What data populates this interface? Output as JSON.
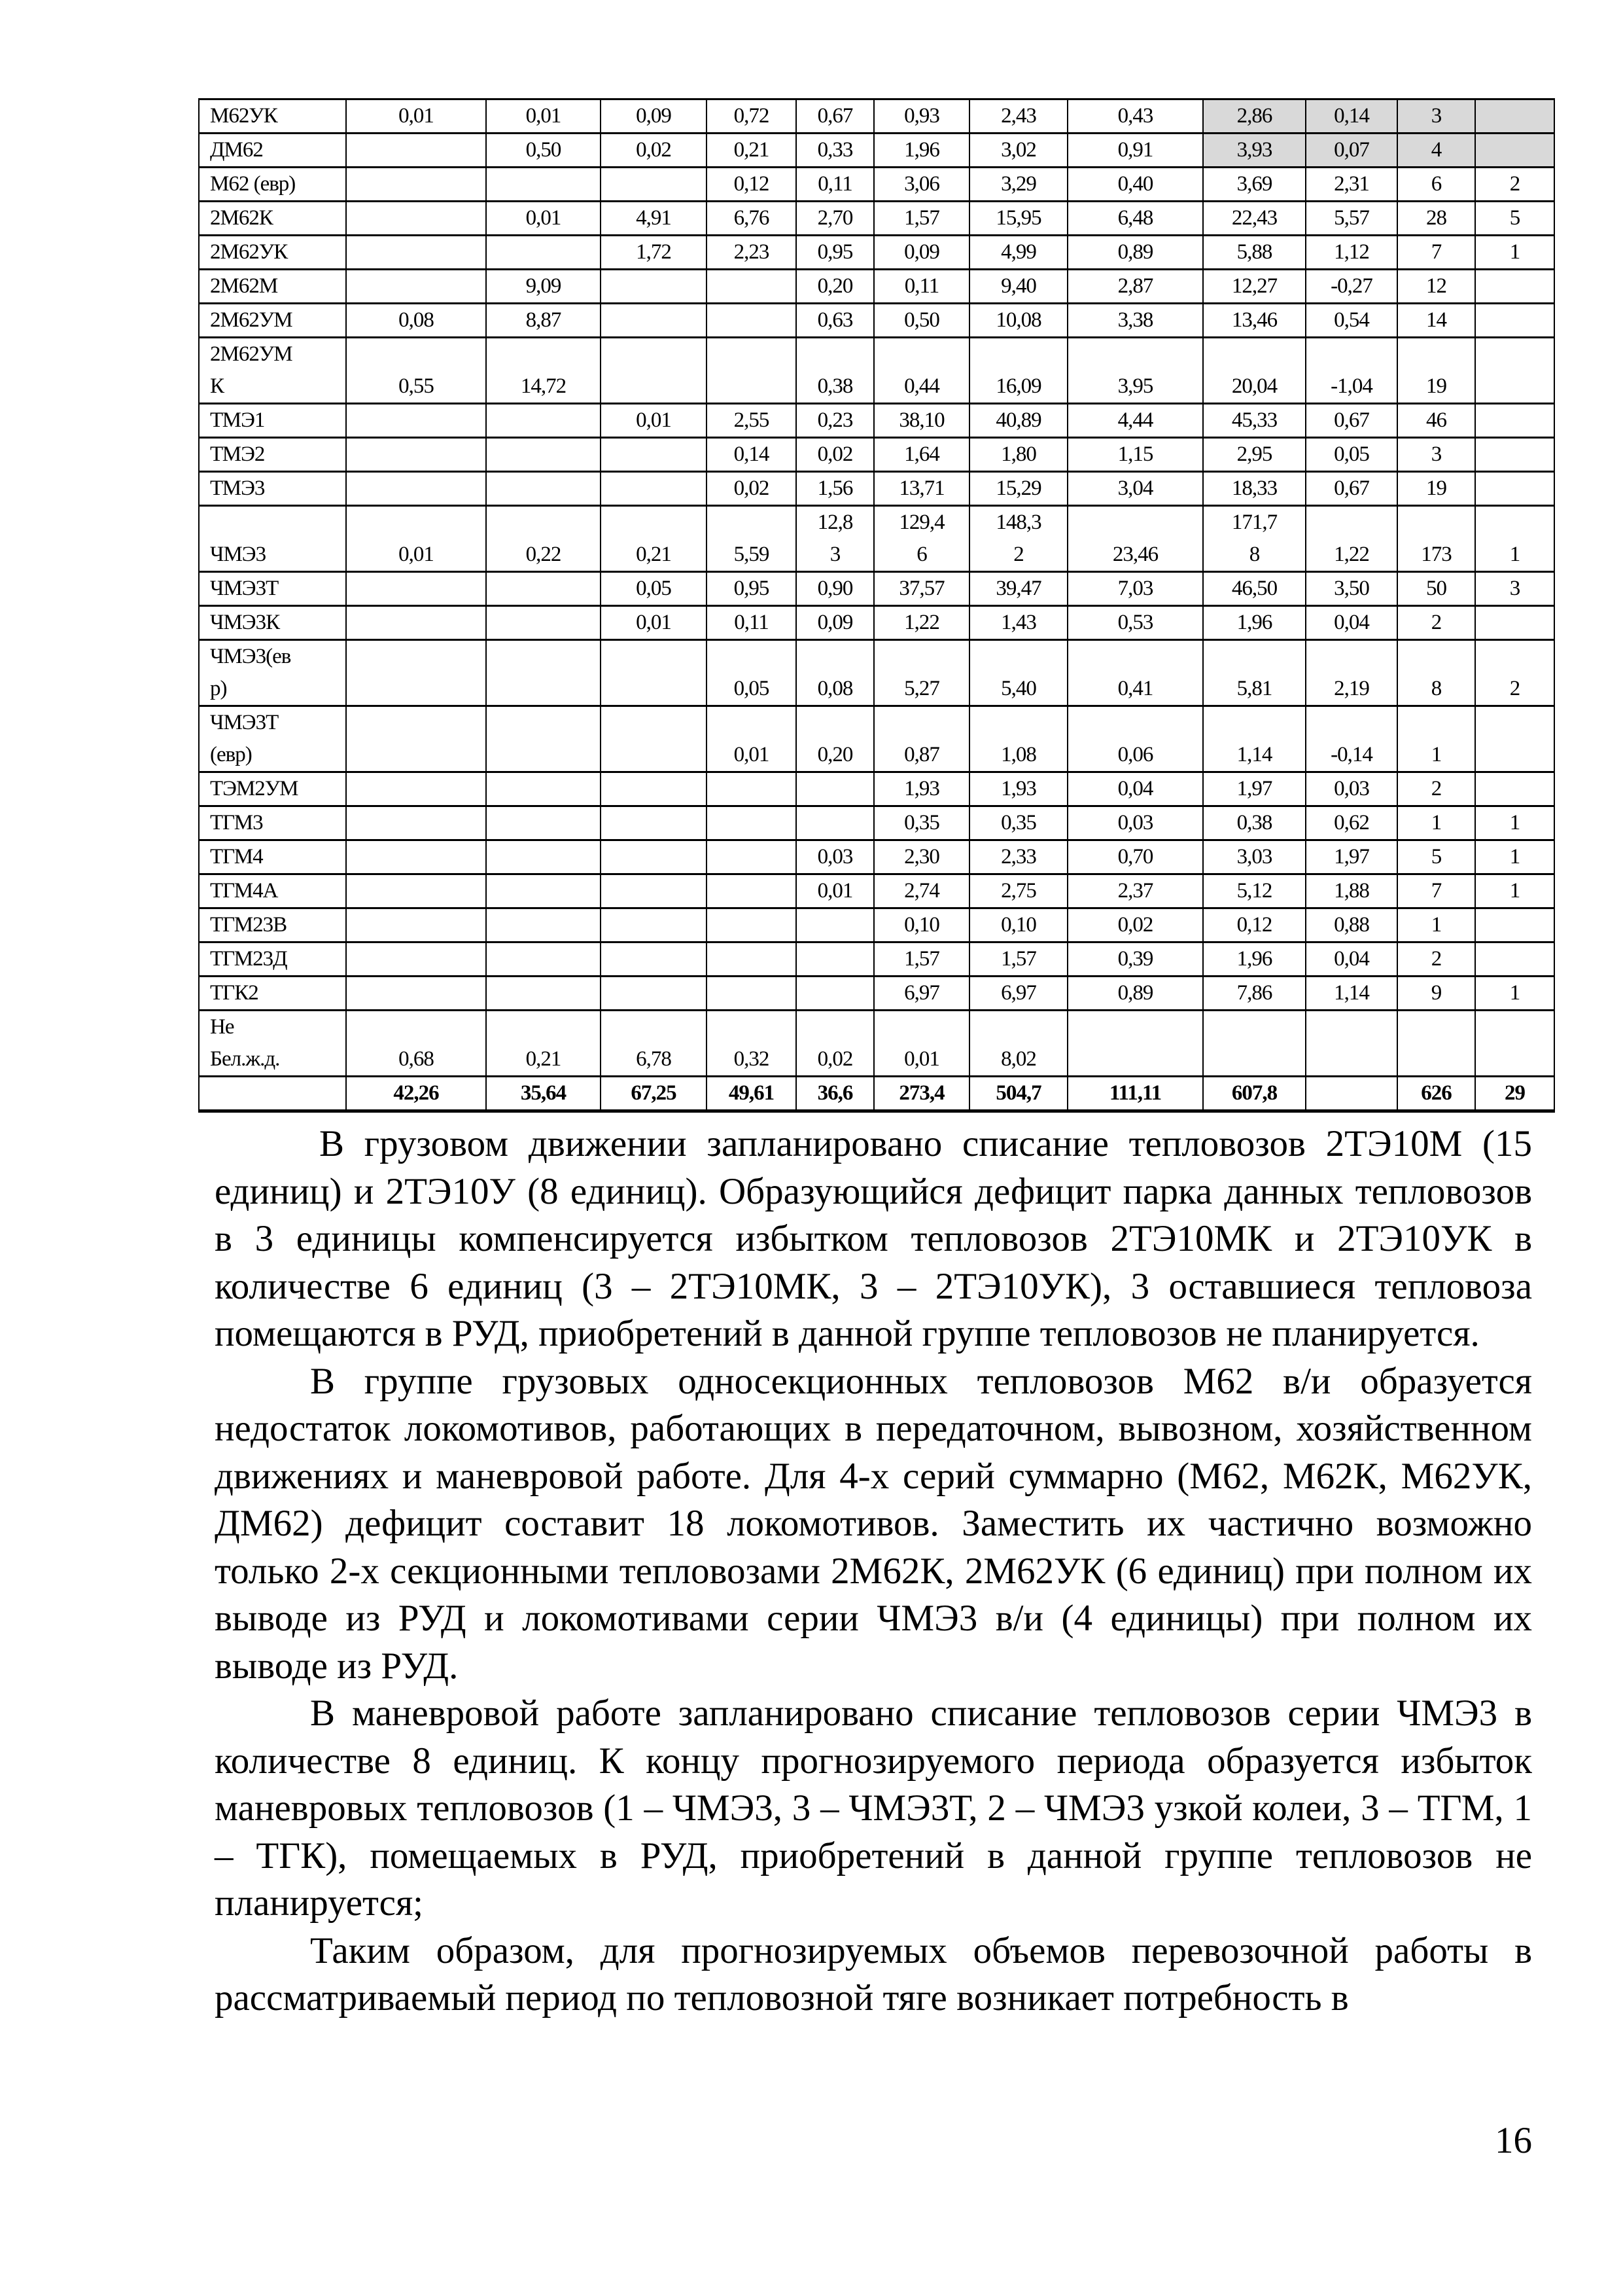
{
  "table": {
    "rows": [
      [
        "М62УК",
        "0,01",
        "0,01",
        "0,09",
        "0,72",
        "0,67",
        "0,93",
        "2,43",
        "0,43",
        "2,86",
        "0,14",
        "3",
        ""
      ],
      [
        "ДМ62",
        "",
        "0,50",
        "0,02",
        "0,21",
        "0,33",
        "1,96",
        "3,02",
        "0,91",
        "3,93",
        "0,07",
        "4",
        ""
      ],
      [
        "М62 (евр)",
        "",
        "",
        "",
        "0,12",
        "0,11",
        "3,06",
        "3,29",
        "0,40",
        "3,69",
        "2,31",
        "6",
        "2"
      ],
      [
        "2М62К",
        "",
        "0,01",
        "4,91",
        "6,76",
        "2,70",
        "1,57",
        "15,95",
        "6,48",
        "22,43",
        "5,57",
        "28",
        "5"
      ],
      [
        "2М62УК",
        "",
        "",
        "1,72",
        "2,23",
        "0,95",
        "0,09",
        "4,99",
        "0,89",
        "5,88",
        "1,12",
        "7",
        "1"
      ],
      [
        "2М62М",
        "",
        "9,09",
        "",
        "",
        "0,20",
        "0,11",
        "9,40",
        "2,87",
        "12,27",
        "-0,27",
        "12",
        ""
      ],
      [
        "2М62УМ",
        "0,08",
        "8,87",
        "",
        "",
        "0,63",
        "0,50",
        "10,08",
        "3,38",
        "13,46",
        "0,54",
        "14",
        ""
      ],
      [
        "2М62УМ\nК",
        "0,55",
        "14,72",
        "",
        "",
        "0,38",
        "0,44",
        "16,09",
        "3,95",
        "20,04",
        "-1,04",
        "19",
        ""
      ],
      [
        "ТМЭ1",
        "",
        "",
        "0,01",
        "2,55",
        "0,23",
        "38,10",
        "40,89",
        "4,44",
        "45,33",
        "0,67",
        "46",
        ""
      ],
      [
        "ТМЭ2",
        "",
        "",
        "",
        "0,14",
        "0,02",
        "1,64",
        "1,80",
        "1,15",
        "2,95",
        "0,05",
        "3",
        ""
      ],
      [
        "ТМЭ3",
        "",
        "",
        "",
        "0,02",
        "1,56",
        "13,71",
        "15,29",
        "3,04",
        "18,33",
        "0,67",
        "19",
        ""
      ],
      [
        "ЧМЭ3",
        "0,01",
        "0,22",
        "0,21",
        "5,59",
        "12,8\n3",
        "129,4\n6",
        "148,3\n2",
        "23,46",
        "171,7\n8",
        "1,22",
        "173",
        "1"
      ],
      [
        "ЧМЭ3Т",
        "",
        "",
        "0,05",
        "0,95",
        "0,90",
        "37,57",
        "39,47",
        "7,03",
        "46,50",
        "3,50",
        "50",
        "3"
      ],
      [
        "ЧМЭ3К",
        "",
        "",
        "0,01",
        "0,11",
        "0,09",
        "1,22",
        "1,43",
        "0,53",
        "1,96",
        "0,04",
        "2",
        ""
      ],
      [
        "ЧМЭ3(ев\nр)",
        "",
        "",
        "",
        "0,05",
        "0,08",
        "5,27",
        "5,40",
        "0,41",
        "5,81",
        "2,19",
        "8",
        "2"
      ],
      [
        "ЧМЭ3Т\n(евр)",
        "",
        "",
        "",
        "0,01",
        "0,20",
        "0,87",
        "1,08",
        "0,06",
        "1,14",
        "-0,14",
        "1",
        ""
      ],
      [
        "ТЭМ2УМ",
        "",
        "",
        "",
        "",
        "",
        "1,93",
        "1,93",
        "0,04",
        "1,97",
        "0,03",
        "2",
        ""
      ],
      [
        "ТГМ3",
        "",
        "",
        "",
        "",
        "",
        "0,35",
        "0,35",
        "0,03",
        "0,38",
        "0,62",
        "1",
        "1"
      ],
      [
        "ТГМ4",
        "",
        "",
        "",
        "",
        "0,03",
        "2,30",
        "2,33",
        "0,70",
        "3,03",
        "1,97",
        "5",
        "1"
      ],
      [
        "ТГМ4А",
        "",
        "",
        "",
        "",
        "0,01",
        "2,74",
        "2,75",
        "2,37",
        "5,12",
        "1,88",
        "7",
        "1"
      ],
      [
        "ТГМ23В",
        "",
        "",
        "",
        "",
        "",
        "0,10",
        "0,10",
        "0,02",
        "0,12",
        "0,88",
        "1",
        ""
      ],
      [
        "ТГМ23Д",
        "",
        "",
        "",
        "",
        "",
        "1,57",
        "1,57",
        "0,39",
        "1,96",
        "0,04",
        "2",
        ""
      ],
      [
        "ТГК2",
        "",
        "",
        "",
        "",
        "",
        "6,97",
        "6,97",
        "0,89",
        "7,86",
        "1,14",
        "9",
        "1"
      ],
      [
        "Не\nБел.ж.д.",
        "0,68",
        "0,21",
        "6,78",
        "0,32",
        "0,02",
        "0,01",
        "8,02",
        "",
        "",
        "",
        "",
        ""
      ]
    ],
    "total": [
      "",
      "42,26",
      "35,64",
      "67,25",
      "49,61",
      "36,6",
      "273,4",
      "504,7",
      "111,11",
      "607,8",
      "",
      "626",
      "29"
    ],
    "highlight_color": "#d9d9d9"
  },
  "paragraphs": [
    "В грузовом движении запланировано списание тепловозов 2ТЭ10М (15 единиц) и 2ТЭ10У (8 единиц). Образующийся дефицит парка данных тепловозов в  3 единицы компенсируется избытком тепловозов 2ТЭ10МК и 2ТЭ10УК в количестве 6 единиц (3 – 2ТЭ10МК, 3 – 2ТЭ10УК), 3 оставшиеся тепловоза помещаются в РУД, приобретений в данной группе тепловозов не планируется.",
    "В группе грузовых односекционных тепловозов М62 в/и образуется недостаток локомотивов, работающих в передаточном, вывозном, хозяйственном движениях и маневровой работе. Для 4-х серий суммарно (М62, М62К, М62УК, ДМ62) дефицит составит 18 локомотивов. Заместить их частично возможно только 2-х секционными тепловозами 2М62К, 2М62УК (6 единиц) при полном их выводе из РУД и локомотивами серии ЧМЭ3 в/и (4 единицы) при полном их выводе из РУД.",
    "В маневровой работе запланировано списание тепловозов серии ЧМЭ3 в количестве 8 единиц. К концу прогнозируемого периода образуется избыток маневровых тепловозов (1 – ЧМЭ3, 3 – ЧМЭ3Т, 2 – ЧМЭ3 узкой колеи, 3 – ТГМ, 1 – ТГК), помещаемых в РУД, приобретений в данной группе тепловозов не планируется;",
    "Таким образом, для прогнозируемых объемов перевозочной работы в рассматриваемый период по тепловозной тяге возникает потребность в"
  ],
  "page_number": "16"
}
